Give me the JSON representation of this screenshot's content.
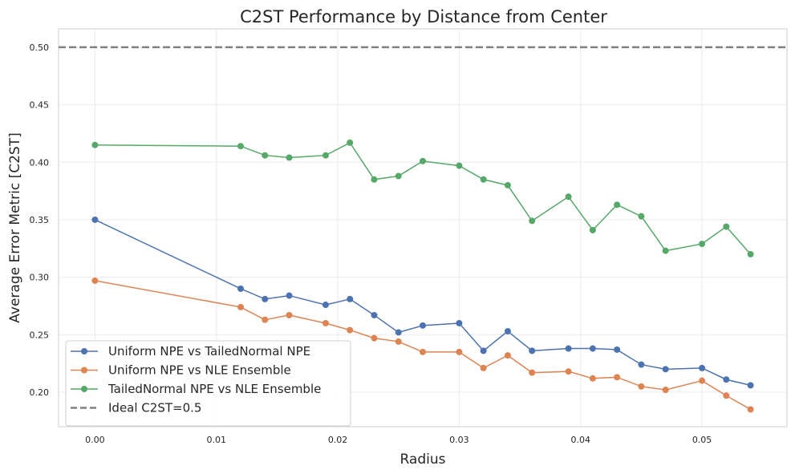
{
  "chart_data": {
    "type": "line",
    "title": "C2ST Performance by Distance from Center",
    "xlabel": "Radius",
    "ylabel": "Average Error Metric [C2ST]",
    "xlim": [
      -0.003,
      0.057
    ],
    "ylim": [
      0.17,
      0.516
    ],
    "xticks": [
      0.0,
      0.01,
      0.02,
      0.03,
      0.04,
      0.05
    ],
    "xtick_labels": [
      "0.00",
      "0.01",
      "0.02",
      "0.03",
      "0.04",
      "0.05"
    ],
    "yticks": [
      0.2,
      0.25,
      0.3,
      0.35,
      0.4,
      0.45,
      0.5
    ],
    "ytick_labels": [
      "0.20",
      "0.25",
      "0.30",
      "0.35",
      "0.40",
      "0.45",
      "0.50"
    ],
    "grid": true,
    "legend_position": "lower-left",
    "x": [
      0.0,
      0.012,
      0.014,
      0.016,
      0.019,
      0.021,
      0.023,
      0.025,
      0.027,
      0.03,
      0.032,
      0.034,
      0.036,
      0.039,
      0.041,
      0.043,
      0.045,
      0.047,
      0.05,
      0.052,
      0.054
    ],
    "series": [
      {
        "name": "Uniform NPE vs TailedNormal NPE",
        "color": "#4c72b0",
        "values": [
          0.35,
          0.29,
          0.281,
          0.284,
          0.276,
          0.281,
          0.267,
          0.252,
          0.258,
          0.26,
          0.236,
          0.253,
          0.236,
          0.238,
          0.238,
          0.237,
          0.224,
          0.22,
          0.221,
          0.211,
          0.206
        ]
      },
      {
        "name": "Uniform NPE vs NLE Ensemble",
        "color": "#dd8452",
        "values": [
          0.297,
          0.274,
          0.263,
          0.267,
          0.26,
          0.254,
          0.247,
          0.244,
          0.235,
          0.235,
          0.221,
          0.232,
          0.217,
          0.218,
          0.212,
          0.213,
          0.205,
          0.202,
          0.21,
          0.197,
          0.185
        ]
      },
      {
        "name": "TailedNormal NPE vs NLE Ensemble",
        "color": "#55a868",
        "values": [
          0.415,
          0.414,
          0.406,
          0.404,
          0.406,
          0.417,
          0.385,
          0.388,
          0.401,
          0.397,
          0.385,
          0.38,
          0.349,
          0.37,
          0.341,
          0.363,
          0.353,
          0.323,
          0.329,
          0.344,
          0.32
        ]
      }
    ],
    "reference_line": {
      "name": "Ideal C2ST=0.5",
      "y": 0.5,
      "color": "#808080",
      "style": "dashed"
    }
  }
}
